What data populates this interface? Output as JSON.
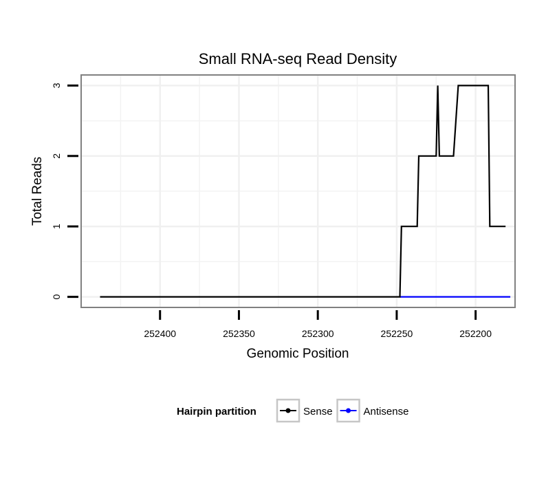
{
  "chart_data": {
    "type": "line",
    "title": "Small RNA-seq Read Density",
    "xlabel": "Genomic Position",
    "ylabel": "Total Reads",
    "x_reversed": true,
    "xlim": [
      252175,
      252450
    ],
    "ylim": [
      -0.15,
      3.15
    ],
    "xticks": [
      252400,
      252350,
      252300,
      252250,
      252200
    ],
    "xtick_labels": [
      "252400",
      "252350",
      "252300",
      "252250",
      "252200"
    ],
    "xminor": [
      252425,
      252375,
      252325,
      252275,
      252225,
      252175
    ],
    "yticks": [
      0,
      1,
      2,
      3
    ],
    "ytick_labels": [
      "0",
      "1",
      "2",
      "3"
    ],
    "yminor": [
      0.5,
      1.5,
      2.5
    ],
    "grid": true,
    "legend": {
      "title": "Hairpin partition",
      "position": "bottom",
      "entries": [
        {
          "name": "Sense",
          "color": "#000000"
        },
        {
          "name": "Antisense",
          "color": "#0000ff"
        }
      ]
    },
    "series": [
      {
        "name": "Sense",
        "color": "#000000",
        "x": [
          252438,
          252248,
          252247,
          252237,
          252236,
          252225,
          252224,
          252223,
          252214,
          252211,
          252210,
          252192,
          252191,
          252182,
          252181
        ],
        "y": [
          0,
          0,
          1,
          1,
          2,
          2,
          3,
          2,
          2,
          3,
          3,
          3,
          1,
          1,
          1
        ]
      },
      {
        "name": "Antisense",
        "color": "#0000ff",
        "x": [
          252248,
          252178
        ],
        "y": [
          0,
          0
        ]
      }
    ]
  }
}
